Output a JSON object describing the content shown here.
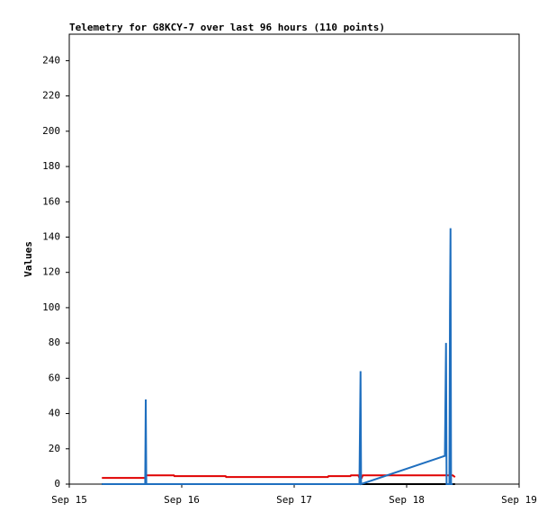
{
  "chart_data": {
    "type": "line",
    "title": "Telemetry for G8KCY-7 over last 96 hours (110 points)",
    "y_label": "Values",
    "xlim": [
      0,
      4
    ],
    "xticks": [
      {
        "value": 0,
        "label": "Sep 15"
      },
      {
        "value": 1,
        "label": "Sep 16"
      },
      {
        "value": 2,
        "label": "Sep 17"
      },
      {
        "value": 3,
        "label": "Sep 18"
      },
      {
        "value": 4,
        "label": "Sep 19"
      }
    ],
    "ylim": [
      0,
      255
    ],
    "yticks": [
      0,
      20,
      40,
      60,
      80,
      100,
      120,
      140,
      160,
      180,
      200,
      220,
      240
    ],
    "series": [
      {
        "color": "#000000",
        "x": [
          0.29,
          3.43
        ],
        "values": [
          0,
          0
        ]
      },
      {
        "color": "#e00000",
        "x": [
          0.29,
          0.68,
          0.685,
          0.93,
          0.935,
          1.39,
          1.395,
          2.3,
          2.305,
          2.5,
          2.505,
          2.57,
          2.58,
          2.6,
          2.61,
          3.41,
          3.43
        ],
        "values": [
          3.5,
          3.5,
          5,
          5,
          4.5,
          4.5,
          4,
          4,
          4.5,
          4.5,
          5,
          5,
          3.5,
          3.5,
          5,
          5,
          4
        ]
      },
      {
        "color": "#1f6fbf",
        "x": [
          0.29,
          0.675,
          0.68,
          0.685,
          2.58,
          2.585,
          2.59,
          2.595,
          3.34,
          3.345,
          3.35,
          3.355,
          3.38,
          3.385,
          3.39,
          3.395,
          3.41
        ],
        "values": [
          0,
          0,
          48,
          0,
          0,
          32,
          64,
          0,
          16,
          48,
          80,
          0,
          0,
          97,
          145,
          0,
          0
        ]
      }
    ]
  }
}
